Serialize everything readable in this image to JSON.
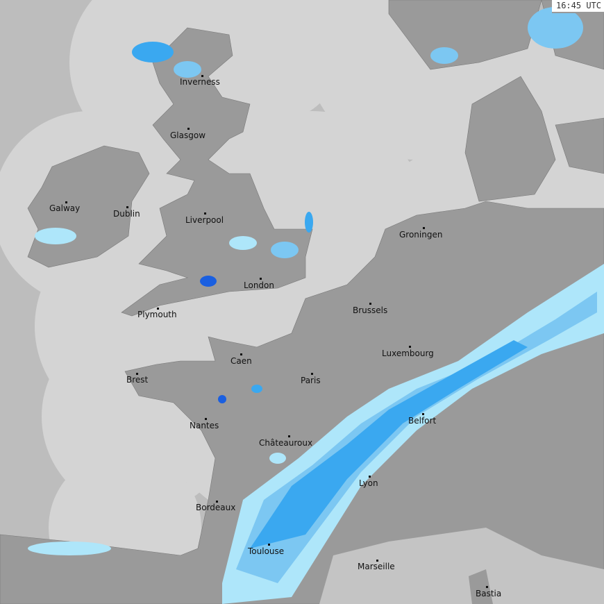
{
  "timestamp": "16:45 UTC",
  "colors": {
    "outside_coverage": "#bdbdbd",
    "sea_in_coverage": "#d4d4d4",
    "land": "#9a9a9a",
    "rain_light": "#aee6fa",
    "rain_moderate": "#3aa8f0",
    "rain_heavy": "#1a5fe0"
  },
  "cities": [
    {
      "name": "Inverness"
    },
    {
      "name": "Glasgow"
    },
    {
      "name": "Galway"
    },
    {
      "name": "Dublin"
    },
    {
      "name": "Liverpool"
    },
    {
      "name": "London"
    },
    {
      "name": "Plymouth"
    },
    {
      "name": "Groningen"
    },
    {
      "name": "Brussels"
    },
    {
      "name": "Luxembourg"
    },
    {
      "name": "Caen"
    },
    {
      "name": "Brest"
    },
    {
      "name": "Paris"
    },
    {
      "name": "Nantes"
    },
    {
      "name": "Châteauroux"
    },
    {
      "name": "Belfort"
    },
    {
      "name": "Lyon"
    },
    {
      "name": "Bordeaux"
    },
    {
      "name": "Toulouse"
    },
    {
      "name": "Marseille"
    },
    {
      "name": "Bastia"
    }
  ]
}
